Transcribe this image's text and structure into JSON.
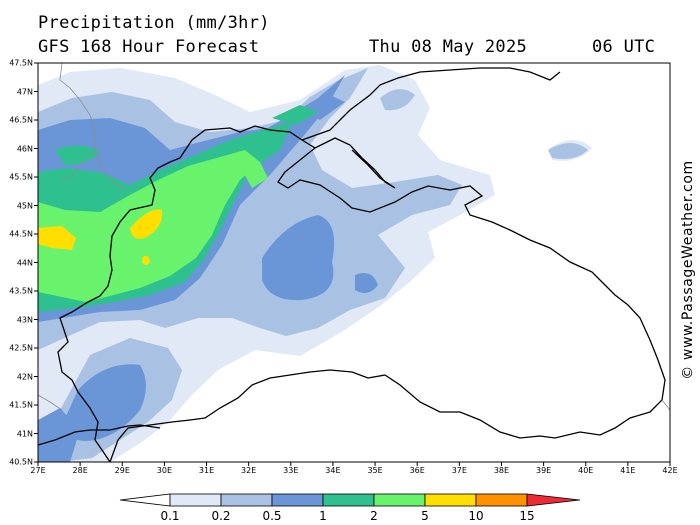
{
  "header": {
    "title": "Precipitation (mm/3hr)",
    "subtitle": "GFS 168 Hour Forecast",
    "date": "Thu 08 May 2025",
    "time": "06 UTC"
  },
  "map": {
    "lat_labels": [
      "47.5N",
      "47N",
      "46.5N",
      "46N",
      "45.5N",
      "45N",
      "44.5N",
      "44N",
      "43.5N",
      "43N",
      "42.5N",
      "42N",
      "41.5N",
      "41N",
      "40.5N"
    ],
    "lon_labels": [
      "27E",
      "28E",
      "29E",
      "30E",
      "31E",
      "32E",
      "33E",
      "34E",
      "35E",
      "36E",
      "37E",
      "38E",
      "39E",
      "40E",
      "41E",
      "42E"
    ],
    "lat_range": [
      40.5,
      47.5
    ],
    "lon_range": [
      27,
      42
    ]
  },
  "legend": {
    "labels": [
      "0.1",
      "0.2",
      "0.5",
      "1",
      "2",
      "5",
      "10",
      "15"
    ],
    "colors": [
      "#ffffff",
      "#e1e8f6",
      "#a9c2e4",
      "#6a96d8",
      "#2ec08e",
      "#69f26b",
      "#ffde00",
      "#ff9000",
      "#ee2a36"
    ]
  },
  "watermark": "© www.PassageWeather.com"
}
